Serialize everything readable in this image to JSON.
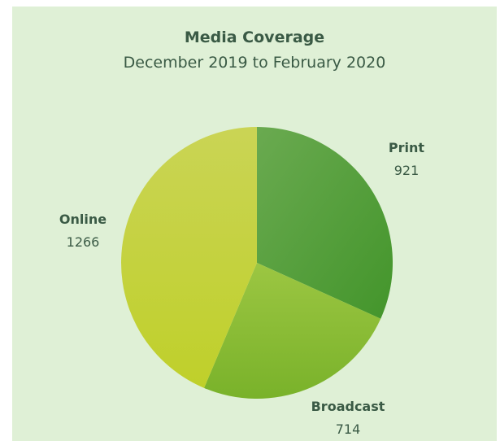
{
  "chart_data": {
    "type": "pie",
    "title": "Media Coverage",
    "subtitle": "December 2019 to February 2020",
    "slices": [
      {
        "label": "Print",
        "value": 921,
        "color": "#4f9c3a"
      },
      {
        "label": "Broadcast",
        "value": 714,
        "color": "#86b82e"
      },
      {
        "label": "Online",
        "value": 1266,
        "color": "#c5d436"
      }
    ]
  }
}
